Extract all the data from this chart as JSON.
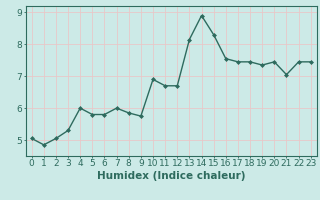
{
  "x": [
    0,
    1,
    2,
    3,
    4,
    5,
    6,
    7,
    8,
    9,
    10,
    11,
    12,
    13,
    14,
    15,
    16,
    17,
    18,
    19,
    20,
    21,
    22,
    23
  ],
  "y": [
    5.05,
    4.85,
    5.05,
    5.3,
    6.0,
    5.8,
    5.8,
    6.0,
    5.85,
    5.75,
    6.9,
    6.7,
    6.7,
    8.15,
    8.9,
    8.3,
    7.55,
    7.45,
    7.45,
    7.35,
    7.45,
    7.05,
    7.45,
    7.45
  ],
  "line_color": "#2e6b5e",
  "marker": "D",
  "marker_size": 2.0,
  "bg_color": "#cceae7",
  "grid_color": "#e8c8c8",
  "xlabel": "Humidex (Indice chaleur)",
  "xlim": [
    -0.5,
    23.5
  ],
  "ylim": [
    4.5,
    9.2
  ],
  "yticks": [
    5,
    6,
    7,
    8,
    9
  ],
  "xticks": [
    0,
    1,
    2,
    3,
    4,
    5,
    6,
    7,
    8,
    9,
    10,
    11,
    12,
    13,
    14,
    15,
    16,
    17,
    18,
    19,
    20,
    21,
    22,
    23
  ],
  "tick_color": "#2e6b5e",
  "label_color": "#2e6b5e",
  "font_size": 6.5,
  "xlabel_fontsize": 7.5,
  "line_width": 1.0
}
